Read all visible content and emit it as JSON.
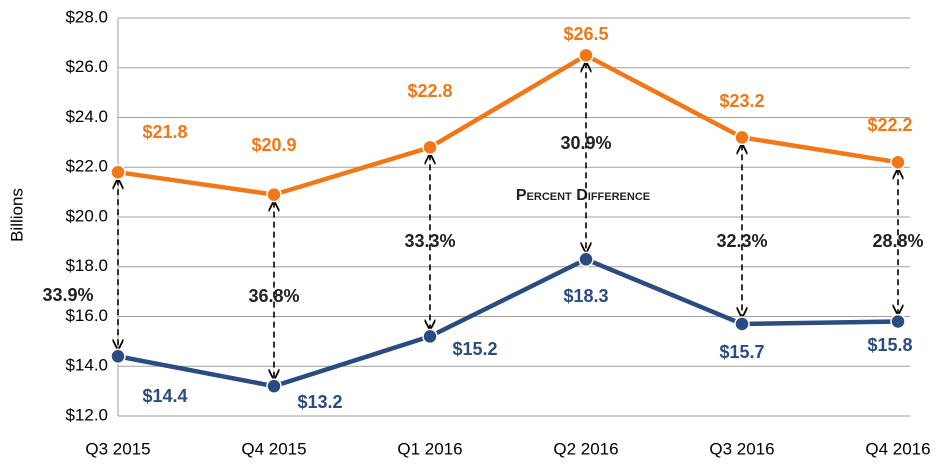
{
  "chart_data": {
    "type": "line",
    "y_label": "Billions",
    "categories": [
      "Q3 2015",
      "Q4 2015",
      "Q1 2016",
      "Q2 2016",
      "Q3 2016",
      "Q4 2016"
    ],
    "series": [
      {
        "color": "#f07818",
        "values": [
          21.8,
          20.9,
          22.8,
          26.5,
          23.2,
          22.2
        ],
        "value_labels": [
          "$21.8",
          "$20.9",
          "$22.8",
          "$26.5",
          "$23.2",
          "$22.2"
        ]
      },
      {
        "color": "#2b4c80",
        "values": [
          14.4,
          13.2,
          15.2,
          18.3,
          15.7,
          15.8
        ],
        "value_labels": [
          "$14.4",
          "$13.2",
          "$15.2",
          "$18.3",
          "$15.7",
          "$15.8"
        ]
      }
    ],
    "annotation": "Percent Difference",
    "percent_labels": [
      "33.9%",
      "36.8%",
      "33.3%",
      "30.9%",
      "32.3%",
      "28.8%"
    ],
    "ylim": [
      12,
      28
    ],
    "yticks": [
      {
        "value": 12,
        "label": "$12.0"
      },
      {
        "value": 14,
        "label": "$14.0"
      },
      {
        "value": 16,
        "label": "$16.0"
      },
      {
        "value": 18,
        "label": "$18.0"
      },
      {
        "value": 20,
        "label": "$20.0"
      },
      {
        "value": 22,
        "label": "$22.0"
      },
      {
        "value": 24,
        "label": "$24.0"
      },
      {
        "value": 26,
        "label": "$26.0"
      },
      {
        "value": 28,
        "label": "$28.0"
      }
    ],
    "grid": true
  }
}
